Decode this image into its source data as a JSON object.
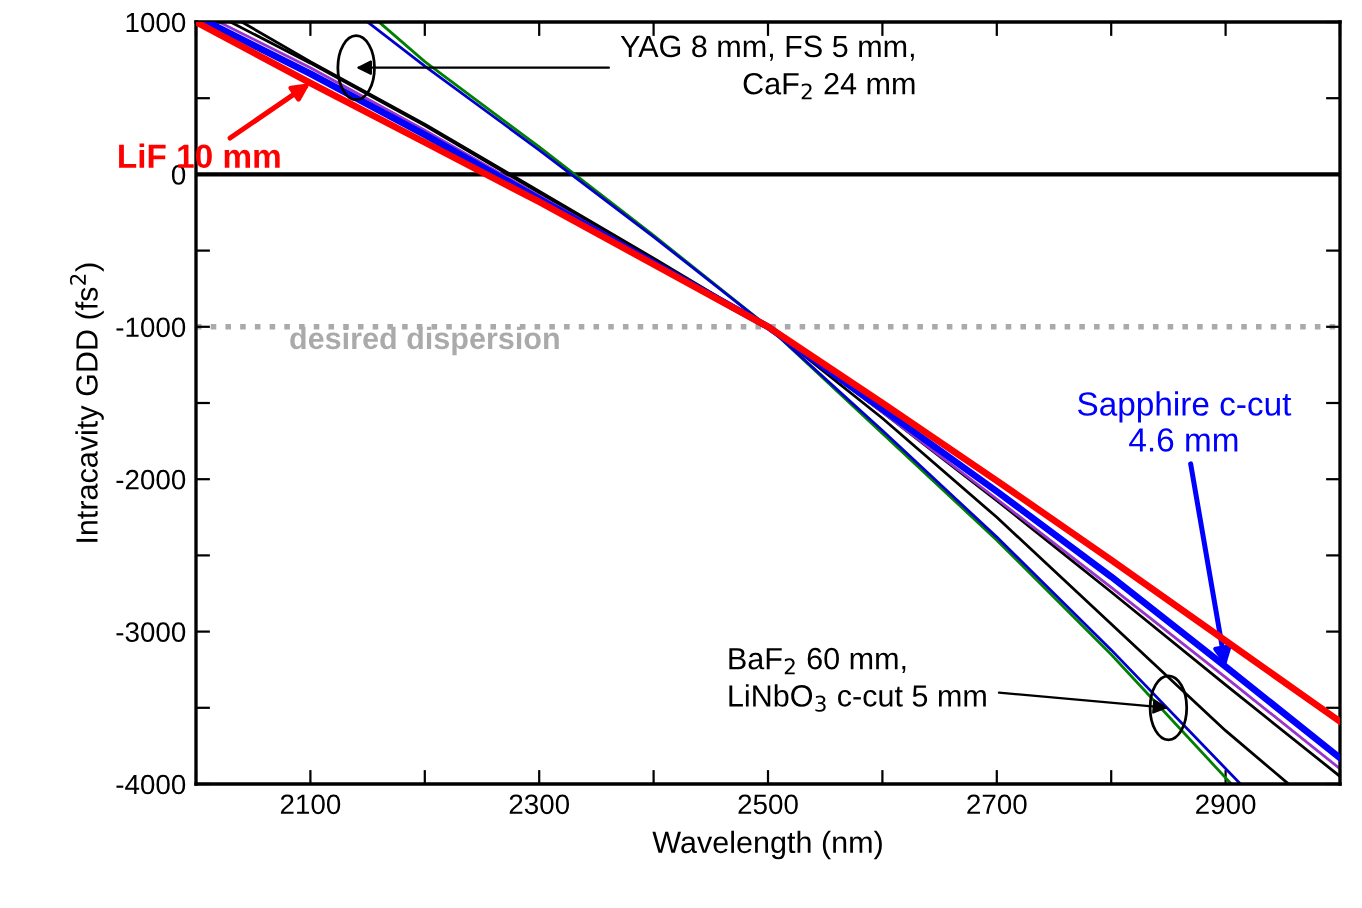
{
  "chart_data": {
    "type": "line",
    "xlabel": "Wavelength (nm)",
    "ylabel": "Intracavity GDD (fs$^{2}$)",
    "xlim": [
      2000,
      3000
    ],
    "ylim": [
      -4000,
      1000
    ],
    "xticks": [
      {
        "value": 2000,
        "label": null
      },
      2100,
      {
        "value": 2200,
        "label": null
      },
      2300,
      {
        "value": 2400,
        "label": null
      },
      2500,
      {
        "value": 2600,
        "label": null
      },
      2700,
      {
        "value": 2800,
        "label": null
      },
      2900,
      {
        "value": 3000,
        "label": null
      }
    ],
    "yticks": [
      -4000,
      {
        "value": -3500,
        "label": null
      },
      -3000,
      {
        "value": -2500,
        "label": null
      },
      -2000,
      {
        "value": -1500,
        "label": null
      },
      -1000,
      {
        "value": -500,
        "label": null
      },
      0,
      {
        "value": 500,
        "label": null
      },
      1000
    ],
    "grid": false,
    "legend": false,
    "marker": "none",
    "line_style": "solid",
    "series": [
      {
        "color": "#008000",
        "x": [
          2160,
          2200,
          2300,
          2400,
          2500,
          2600,
          2700,
          2800,
          2905
        ],
        "values": [
          1000,
          740,
          180,
          -400,
          -1000,
          -1700,
          -2400,
          -3150,
          -4000
        ]
      },
      {
        "color": "#0000cc",
        "x": [
          2150,
          2200,
          2300,
          2400,
          2500,
          2600,
          2700,
          2800,
          2913
        ],
        "values": [
          1000,
          710,
          160,
          -410,
          -1000,
          -1680,
          -2380,
          -3120,
          -4000
        ]
      },
      {
        "color": "#000000",
        "x": [
          2030,
          2100,
          2200,
          2300,
          2400,
          2500,
          2600,
          2700,
          2800,
          2900,
          2955
        ],
        "values": [
          1000,
          730,
          320,
          -120,
          -560,
          -1000,
          -1600,
          -2250,
          -2950,
          -3650,
          -4000
        ]
      },
      {
        "color": "#000000",
        "x": [
          2040,
          2100,
          2200,
          2300,
          2400,
          2500,
          2600,
          2700,
          2800,
          2900,
          3000
        ],
        "values": [
          1000,
          740,
          330,
          -110,
          -550,
          -1000,
          -1560,
          -2140,
          -2740,
          -3350,
          -3950
        ]
      },
      {
        "color": "#9933cc",
        "x": [
          2020,
          2100,
          2200,
          2300,
          2400,
          2500,
          2600,
          2700,
          2800,
          2900,
          3000
        ],
        "values": [
          1000,
          700,
          290,
          -140,
          -570,
          -1000,
          -1560,
          -2130,
          -2710,
          -3300,
          -3900
        ]
      },
      {
        "name": "Sapphire c-cut\n4.6 mm",
        "color": "#0000ff",
        "x": [
          2010,
          2100,
          2200,
          2300,
          2400,
          2500,
          2600,
          2700,
          2800,
          2900,
          3000
        ],
        "values": [
          1000,
          660,
          260,
          -160,
          -580,
          -1000,
          -1540,
          -2080,
          -2640,
          -3230,
          -3830
        ]
      },
      {
        "name": "LiF 10 mm",
        "color": "#ff0000",
        "x": [
          2000,
          2100,
          2200,
          2300,
          2400,
          2500,
          2600,
          2700,
          2800,
          2900,
          3000
        ],
        "values": [
          1000,
          600,
          210,
          -180,
          -590,
          -1000,
          -1500,
          -2010,
          -2530,
          -3060,
          -3590
        ]
      }
    ],
    "ref_lines": [
      {
        "axis": "y",
        "value": 0,
        "color": "#000000",
        "line_style": "solid"
      },
      {
        "axis": "y",
        "value": -1000,
        "label": "desired dispersion",
        "color": "#aaaaaa",
        "line_style": "dotted"
      }
    ],
    "annotations": [
      {
        "text": "YAG 8 mm, FS 5 mm,\nCaF$_{2}$ 24 mm",
        "x": 2140,
        "y": 700
      },
      {
        "text": "BaF$_{2}$ 60 mm,\nLiNbO$_{3}$ c-cut 5 mm",
        "x": 2850,
        "y": -3500
      }
    ]
  }
}
